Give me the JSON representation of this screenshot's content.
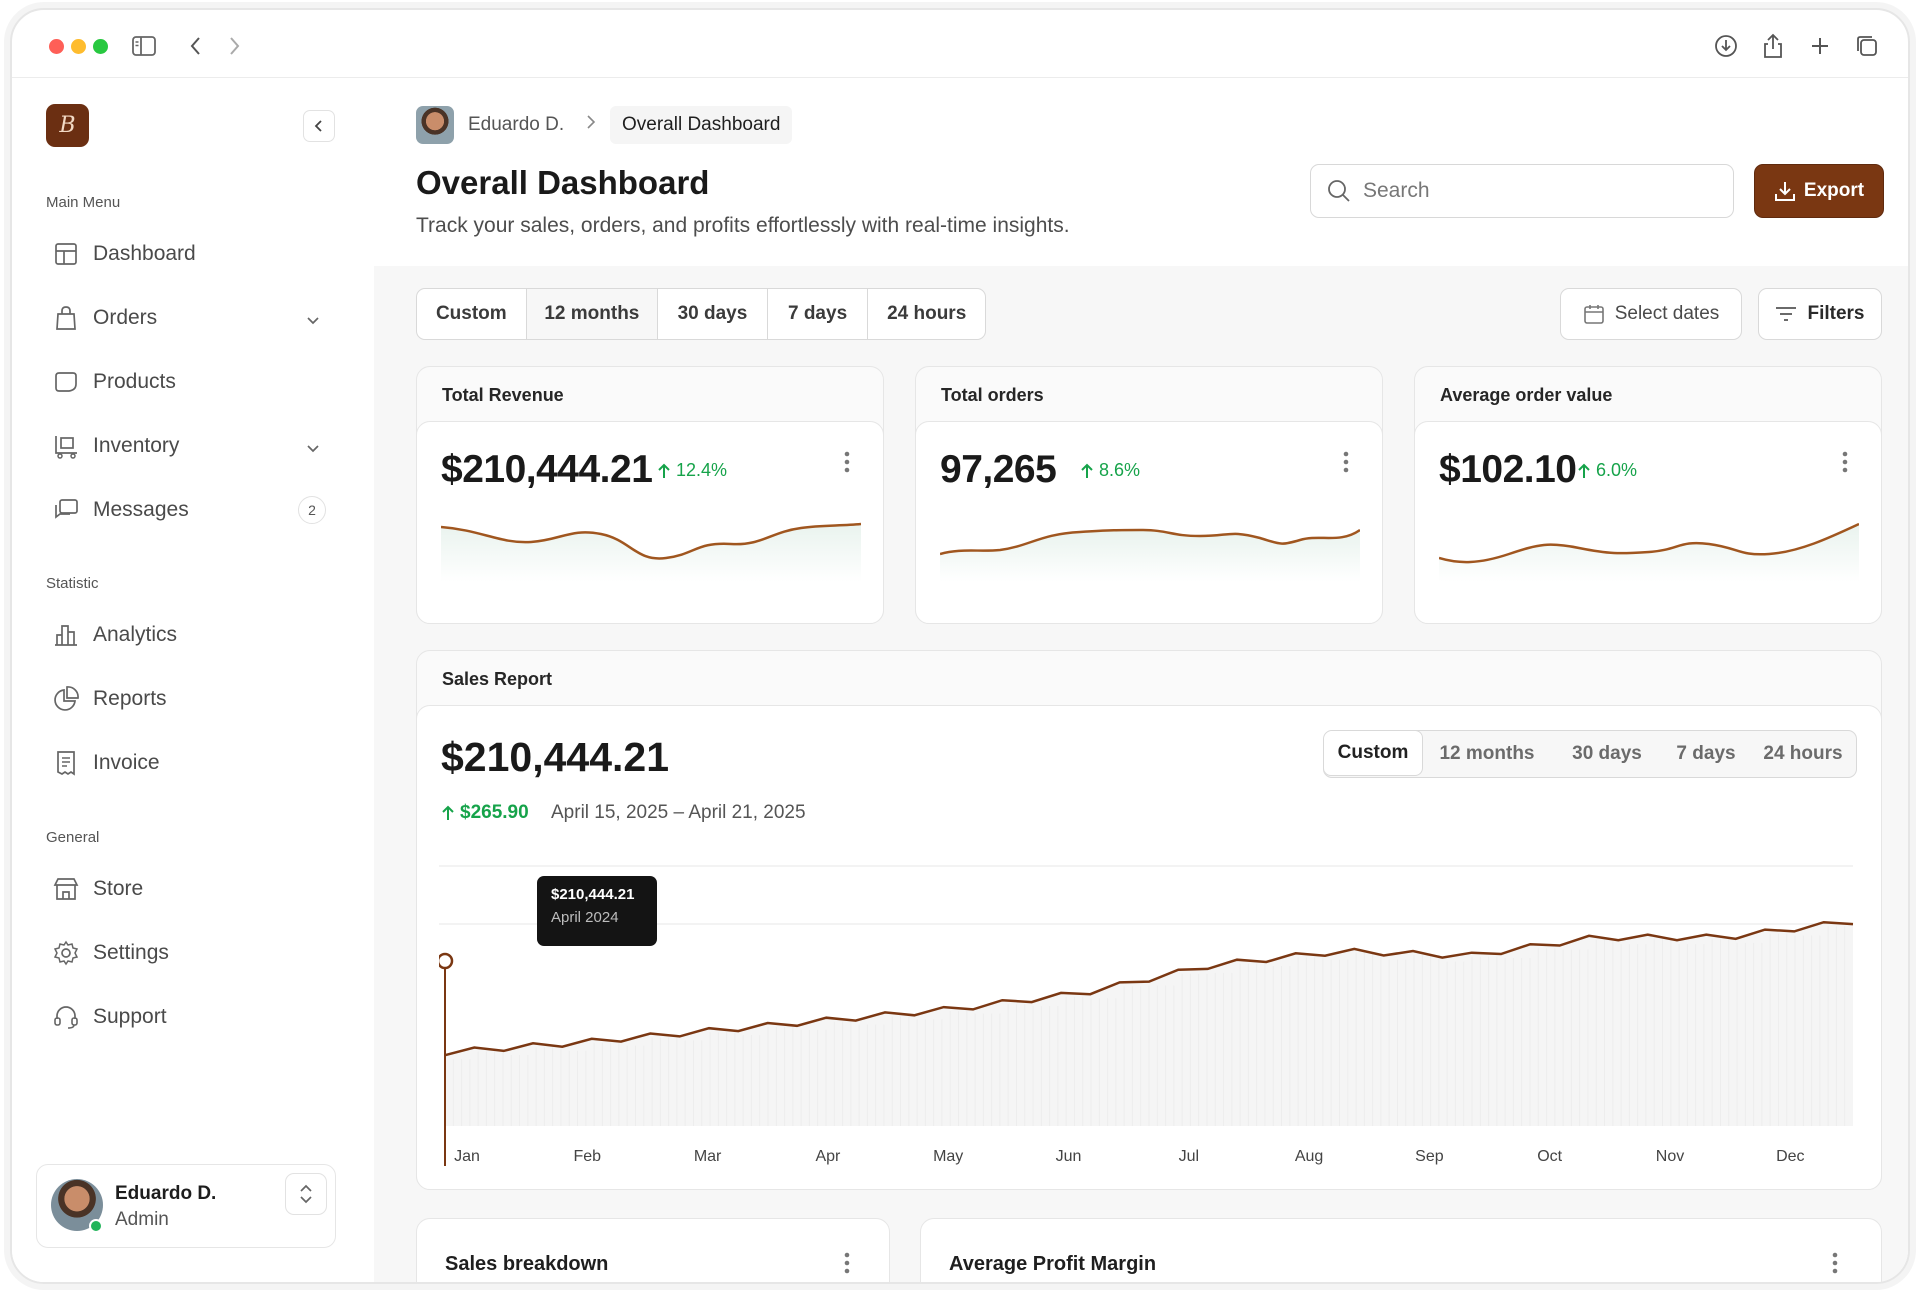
{
  "browser": {
    "icons": [
      "sidebar-toggle-icon",
      "back-icon",
      "forward-icon",
      "download-icon",
      "share-icon",
      "new-tab-icon",
      "tabs-icon"
    ]
  },
  "sidebar": {
    "logo_letter": "B",
    "sections": {
      "main": "Main Menu",
      "statistic": "Statistic",
      "general": "General"
    },
    "items": {
      "dashboard": "Dashboard",
      "orders": "Orders",
      "products": "Products",
      "inventory": "Inventory",
      "messages": "Messages",
      "messages_badge": "2",
      "analytics": "Analytics",
      "reports": "Reports",
      "invoice": "Invoice",
      "store": "Store",
      "settings": "Settings",
      "support": "Support"
    },
    "user": {
      "name": "Eduardo D.",
      "role": "Admin"
    }
  },
  "header": {
    "breadcrumb_user": "Eduardo D.",
    "breadcrumb_current": "Overall Dashboard",
    "title": "Overall Dashboard",
    "subtitle": "Track your sales, orders, and profits effortlessly with real-time insights.",
    "search_placeholder": "Search",
    "export_label": "Export"
  },
  "filters": {
    "ranges": [
      "Custom",
      "12 months",
      "30 days",
      "7 days",
      "24 hours"
    ],
    "active_range": "12 months",
    "select_dates": "Select dates",
    "filters_label": "Filters"
  },
  "kpis": [
    {
      "title": "Total Revenue",
      "value": "$210,444.21",
      "delta": "12.4%"
    },
    {
      "title": "Total orders",
      "value": "97,265",
      "delta": "8.6%"
    },
    {
      "title": "Average order value",
      "value": "$102.10",
      "delta": "6.0%"
    }
  ],
  "sales_report": {
    "title": "Sales Report",
    "total": "$210,444.21",
    "change": "$265.90",
    "range": "April 15, 2025 – April 21, 2025",
    "ranges": [
      "Custom",
      "12 months",
      "30 days",
      "7 days",
      "24 hours"
    ],
    "active_range": "Custom",
    "tooltip_value": "$210,444.21",
    "tooltip_date": "April 2024"
  },
  "chart_data": {
    "type": "area",
    "categories": [
      "Jan",
      "Feb",
      "Mar",
      "Apr",
      "May",
      "Jun",
      "Jul",
      "Aug",
      "Sep",
      "Oct",
      "Nov",
      "Dec"
    ],
    "values": [
      0.32,
      0.36,
      0.41,
      0.46,
      0.51,
      0.58,
      0.7,
      0.76,
      0.74,
      0.82,
      0.82,
      0.89
    ],
    "title": "",
    "xlabel": "",
    "ylabel": "",
    "ylim": [
      0,
      1
    ],
    "grid": true,
    "line_color": "#7a3712"
  },
  "bottom_cards": {
    "sales_breakdown": "Sales breakdown",
    "profit_margin": "Average Profit Margin"
  },
  "colors": {
    "accent": "#7a3712",
    "positive": "#16a34a",
    "sparkline": "#a0561f"
  }
}
